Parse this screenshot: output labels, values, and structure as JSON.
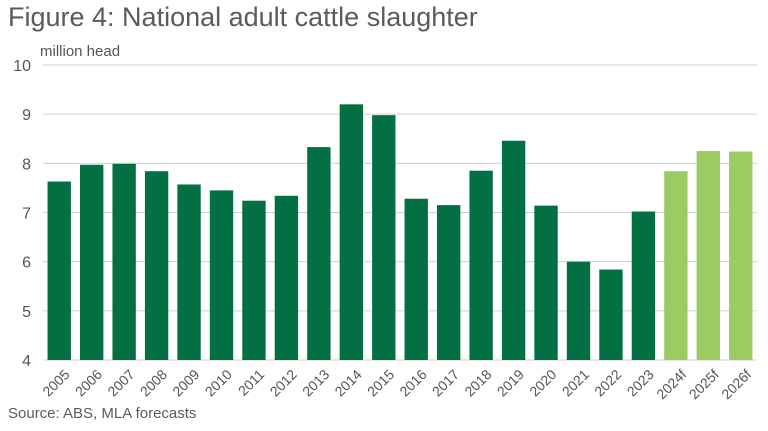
{
  "title": "Figure 4: National adult cattle slaughter",
  "source": "Source: ABS, MLA forecasts",
  "colors": {
    "actual": "#037043",
    "forecast": "#9bcc64",
    "grid": "#d0d0d0",
    "text": "#5b5b5b"
  },
  "chart_data": {
    "type": "bar",
    "title": "Figure 4: National adult cattle slaughter",
    "ylabel": "million head",
    "xlabel": "",
    "ylim": [
      4,
      10
    ],
    "yticks": [
      4,
      5,
      6,
      7,
      8,
      9,
      10
    ],
    "grid": true,
    "legend": "none",
    "categories": [
      "2005",
      "2006",
      "2007",
      "2008",
      "2009",
      "2010",
      "2011",
      "2012",
      "2013",
      "2014",
      "2015",
      "2016",
      "2017",
      "2018",
      "2019",
      "2020",
      "2021",
      "2022",
      "2023",
      "2024f",
      "2025f",
      "2026f"
    ],
    "values": [
      7.63,
      7.97,
      7.99,
      7.84,
      7.57,
      7.45,
      7.24,
      7.34,
      8.33,
      9.2,
      8.98,
      7.28,
      7.15,
      7.85,
      8.46,
      7.14,
      6.0,
      5.84,
      7.02,
      7.84,
      8.25,
      8.24
    ],
    "forecast": [
      false,
      false,
      false,
      false,
      false,
      false,
      false,
      false,
      false,
      false,
      false,
      false,
      false,
      false,
      false,
      false,
      false,
      false,
      false,
      true,
      true,
      true
    ]
  }
}
